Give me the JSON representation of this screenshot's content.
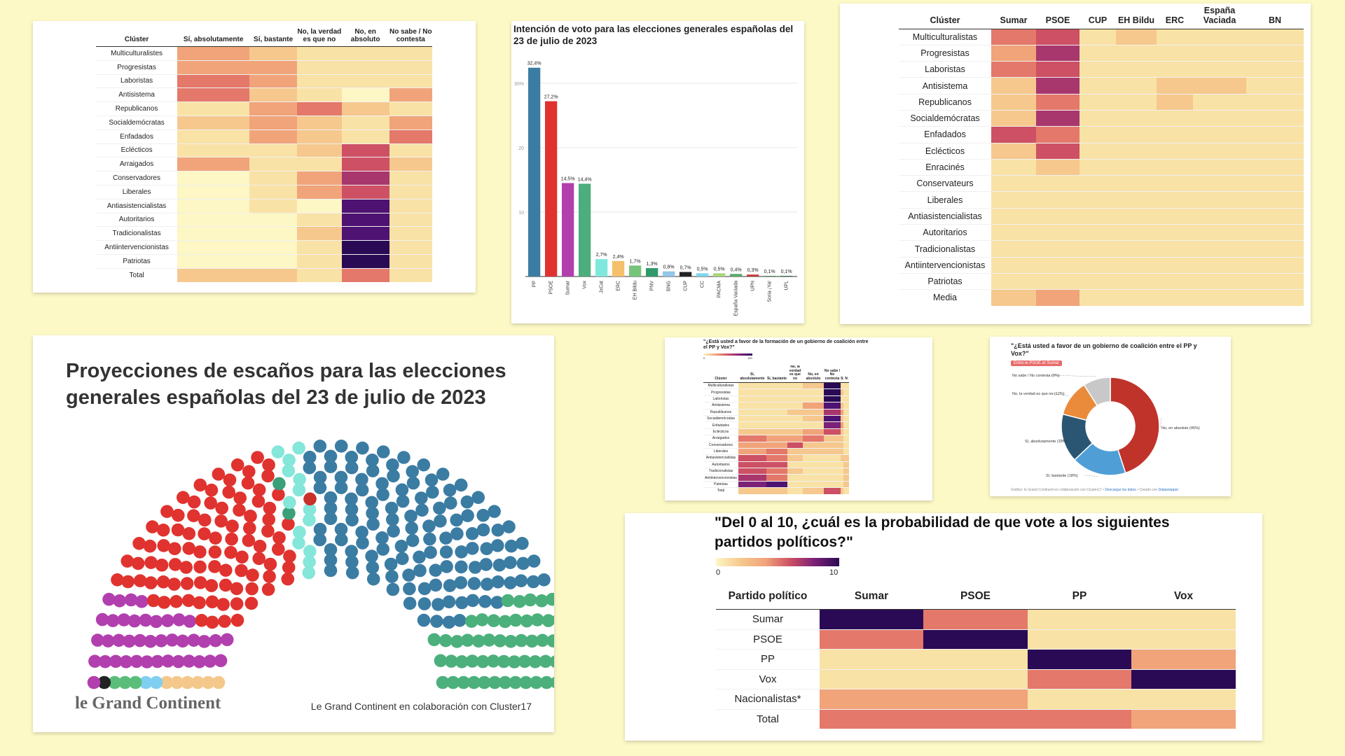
{
  "colors": {
    "background": "#fdf9c6",
    "scale": [
      "#fdf6c5",
      "#f9e2a5",
      "#f6c88e",
      "#f1a47a",
      "#e4786a",
      "#cd5064",
      "#a8376e",
      "#7b2177",
      "#4e1372",
      "#2a0a55"
    ]
  },
  "card1": {
    "headers": [
      "Clúster",
      "Sí, absolutamente",
      "Sí, bastante",
      "No, la verdad es que no",
      "No, en absoluto",
      "No sabe / No contesta"
    ],
    "rows": [
      {
        "label": "Multiculturalistes",
        "v": [
          3,
          2,
          1,
          1,
          1
        ]
      },
      {
        "label": "Progresistas",
        "v": [
          3,
          3,
          1,
          1,
          1
        ]
      },
      {
        "label": "Laboristas",
        "v": [
          4,
          3,
          1,
          1,
          1
        ]
      },
      {
        "label": "Antisistema",
        "v": [
          4,
          2,
          1,
          0,
          3
        ]
      },
      {
        "label": "Republicanos",
        "v": [
          1,
          3,
          4,
          2,
          1
        ]
      },
      {
        "label": "Socialdemócratas",
        "v": [
          2,
          3,
          2,
          1,
          3
        ]
      },
      {
        "label": "Enfadados",
        "v": [
          1,
          3,
          2,
          1,
          4
        ]
      },
      {
        "label": "Eclécticos",
        "v": [
          1,
          1,
          2,
          5,
          1
        ]
      },
      {
        "label": "Arraigados",
        "v": [
          3,
          1,
          1,
          5,
          2
        ]
      },
      {
        "label": "Conservadores",
        "v": [
          0,
          1,
          3,
          6,
          1
        ]
      },
      {
        "label": "Liberales",
        "v": [
          0,
          1,
          3,
          5,
          1
        ]
      },
      {
        "label": "Antiasistencialistas",
        "v": [
          0,
          1,
          0,
          8,
          1
        ]
      },
      {
        "label": "Autoritarios",
        "v": [
          0,
          0,
          1,
          8,
          1
        ]
      },
      {
        "label": "Tradicionalistas",
        "v": [
          0,
          0,
          2,
          8,
          1
        ]
      },
      {
        "label": "Antiintervencionistas",
        "v": [
          0,
          0,
          1,
          9,
          1
        ]
      },
      {
        "label": "Patriotas",
        "v": [
          0,
          0,
          1,
          9,
          1
        ]
      }
    ],
    "total": {
      "label": "Total",
      "v": [
        2,
        2,
        1,
        4,
        1
      ]
    }
  },
  "card2": {
    "title": "Intención de voto para las elecciones generales españolas del 23 de julio de 2023"
  },
  "chart_data": [
    {
      "type": "bar",
      "title": "Intención de voto para las elecciones generales españolas del 23 de julio de 2023",
      "categories": [
        "PP",
        "PSOE",
        "Sumar",
        "Vox",
        "JxCat",
        "ERC",
        "EH Bildu",
        "PNV",
        "BNG",
        "CUP",
        "CC",
        "PACMA",
        "España Vaciada",
        "UPN",
        "Soria ¡Ya!",
        "UPL"
      ],
      "values": [
        32.4,
        27.2,
        14.5,
        14.4,
        2.7,
        2.4,
        1.7,
        1.3,
        0.8,
        0.7,
        0.5,
        0.5,
        0.4,
        0.3,
        0.1,
        0.1
      ],
      "labels": [
        "32,4%",
        "27,2%",
        "14,5%",
        "14,4%",
        "2,7%",
        "2,4%",
        "1,7%",
        "1,3%",
        "0,8%",
        "0,7%",
        "0,5%",
        "0,5%",
        "0,4%",
        "0,3%",
        "0,1%",
        "0,1%"
      ],
      "colors": [
        "#3b7ca3",
        "#e0332f",
        "#b23fae",
        "#4cae7c",
        "#7fe8dc",
        "#f4c06a",
        "#76c47a",
        "#2e9a6a",
        "#93c6e8",
        "#222222",
        "#7fd6f0",
        "#a8d67a",
        "#5aa96a",
        "#c43a3a",
        "#4a8a5a",
        "#2f6e4a"
      ],
      "yticks": [
        "10",
        "20",
        "30%"
      ],
      "ylim": [
        0,
        34
      ]
    },
    {
      "type": "heatmap",
      "title": "",
      "columns": [
        "Sumar",
        "PSOE",
        "CUP",
        "EH Bildu",
        "ERC",
        "España Vaciada",
        "BN"
      ],
      "rows": [
        "Multiculturalistas",
        "Progresistas",
        "Laboristas",
        "Antisistema",
        "Republicanos",
        "Socialdemócratas",
        "Enfadados",
        "Eclécticos",
        "Enracinés",
        "Conservateurs",
        "Liberales",
        "Antiasistencialistas",
        "Autoritarios",
        "Tradicionalistas",
        "Antiintervencionistas",
        "Patriotas",
        "Media"
      ]
    },
    {
      "type": "pie",
      "title": "¿Está usted a favor de un gobierno de coalición entre el PP y Vox?",
      "slices": [
        {
          "label": "No, en absoluto (45%)",
          "value": 45,
          "color": "#c0332b"
        },
        {
          "label": "Sí, bastante (18%)",
          "value": 18,
          "color": "#4f9ed6"
        },
        {
          "label": "Sí, absolutamente (16%)",
          "value": 16,
          "color": "#2b5673"
        },
        {
          "label": "No, la verdad es que no (12%)",
          "value": 12,
          "color": "#e98b3a"
        },
        {
          "label": "No sabe / No contesta (9%)",
          "value": 9,
          "color": "#c8c8c8"
        }
      ]
    },
    {
      "type": "heatmap",
      "title": "\"Del 0 al 10, ¿cuál es la probabilidad de que vote a los siguientes partidos políticos?\"",
      "columns": [
        "Sumar",
        "PSOE",
        "PP",
        "Vox"
      ],
      "rows": [
        "Sumar",
        "PSOE",
        "PP",
        "Vox",
        "Nacionalistas*",
        "Total"
      ]
    }
  ],
  "card3": {
    "headers": [
      "Clúster",
      "Sumar",
      "PSOE",
      "CUP",
      "EH Bildu",
      "ERC",
      "España Vaciada",
      "BN"
    ],
    "rows": [
      {
        "label": "Multiculturalistas",
        "v": [
          4,
          5,
          1,
          2,
          1,
          1,
          1
        ]
      },
      {
        "label": "Progresistas",
        "v": [
          3,
          6,
          1,
          1,
          1,
          1,
          1
        ]
      },
      {
        "label": "Laboristas",
        "v": [
          4,
          5,
          1,
          1,
          1,
          1,
          1
        ]
      },
      {
        "label": "Antisistema",
        "v": [
          2,
          6,
          1,
          1,
          2,
          2,
          1
        ]
      },
      {
        "label": "Republicanos",
        "v": [
          2,
          4,
          1,
          1,
          2,
          1,
          1
        ]
      },
      {
        "label": "Socialdemócratas",
        "v": [
          2,
          6,
          1,
          1,
          1,
          1,
          1
        ]
      },
      {
        "label": "Enfadados",
        "v": [
          5,
          4,
          1,
          1,
          1,
          1,
          1
        ]
      },
      {
        "label": "Eclécticos",
        "v": [
          2,
          5,
          1,
          1,
          1,
          1,
          1
        ]
      },
      {
        "label": "Enracinés",
        "v": [
          1,
          2,
          1,
          1,
          1,
          1,
          1
        ]
      },
      {
        "label": "Conservateurs",
        "v": [
          1,
          1,
          1,
          1,
          1,
          1,
          1
        ]
      },
      {
        "label": "Liberales",
        "v": [
          1,
          1,
          1,
          1,
          1,
          1,
          1
        ]
      },
      {
        "label": "Antiasistencialistas",
        "v": [
          1,
          1,
          1,
          1,
          1,
          1,
          1
        ]
      },
      {
        "label": "Autoritarios",
        "v": [
          1,
          1,
          1,
          1,
          1,
          1,
          1
        ]
      },
      {
        "label": "Tradicionalistas",
        "v": [
          1,
          1,
          1,
          1,
          1,
          1,
          1
        ]
      },
      {
        "label": "Antiintervencionistas",
        "v": [
          1,
          1,
          1,
          1,
          1,
          1,
          1
        ]
      },
      {
        "label": "Patriotas",
        "v": [
          1,
          1,
          1,
          1,
          1,
          1,
          1
        ]
      }
    ],
    "total": {
      "label": "Media",
      "v": [
        2,
        3,
        1,
        1,
        1,
        1,
        1
      ]
    }
  },
  "card4": {
    "title": "Proyecciones de escaños para las elecciones generales españolas del 23 de julio de 2023",
    "logo": "le Grand Continent",
    "credit": "Le Grand Continent en colaboración con Cluster17"
  },
  "card5": {
    "title": "\"¿Está usted a favor de la formación de un gobierno de coalición entre el PP y Vox?\"",
    "scale_min": "0",
    "scale_max": "100",
    "headers": [
      "Clúster",
      "Sí, absolutamente",
      "Sí, bastante",
      "No, la verdad es que no",
      "No, en absoluto",
      "No sabe / No contesta",
      "Sí",
      "N"
    ],
    "rows": [
      {
        "label": "Multiculturalistas",
        "v": [
          1,
          1,
          1,
          2,
          9,
          1,
          1,
          9
        ]
      },
      {
        "label": "Progresistas",
        "v": [
          1,
          1,
          1,
          1,
          9,
          2,
          1,
          9
        ]
      },
      {
        "label": "Laboristas",
        "v": [
          1,
          1,
          1,
          1,
          9,
          1,
          1,
          9
        ]
      },
      {
        "label": "Antisistema",
        "v": [
          1,
          1,
          1,
          3,
          8,
          2,
          1,
          9
        ]
      },
      {
        "label": "Republicanos",
        "v": [
          1,
          1,
          2,
          2,
          6,
          3,
          1,
          9
        ]
      },
      {
        "label": "Socialdemócratas",
        "v": [
          1,
          1,
          1,
          2,
          8,
          2,
          1,
          9
        ]
      },
      {
        "label": "Enfadados",
        "v": [
          1,
          1,
          1,
          1,
          7,
          3,
          1,
          8
        ]
      },
      {
        "label": "Eclécticos",
        "v": [
          2,
          2,
          2,
          3,
          5,
          2,
          1,
          8
        ]
      },
      {
        "label": "Arraigados",
        "v": [
          4,
          3,
          3,
          4,
          2,
          2,
          1,
          7
        ]
      },
      {
        "label": "Conservadores",
        "v": [
          3,
          3,
          5,
          2,
          2,
          2,
          1,
          7
        ]
      },
      {
        "label": "Liberales",
        "v": [
          3,
          4,
          2,
          2,
          2,
          2,
          1,
          8
        ]
      },
      {
        "label": "Antiasistencialistas",
        "v": [
          5,
          4,
          2,
          1,
          1,
          2,
          2,
          6
        ]
      },
      {
        "label": "Autoritarios",
        "v": [
          5,
          5,
          1,
          1,
          1,
          1,
          2,
          6
        ]
      },
      {
        "label": "Tradicionalistas",
        "v": [
          5,
          4,
          2,
          1,
          1,
          1,
          2,
          6
        ]
      },
      {
        "label": "Antiintervencionistas",
        "v": [
          6,
          4,
          1,
          1,
          1,
          1,
          2,
          7
        ]
      },
      {
        "label": "Patriotas",
        "v": [
          7,
          8,
          1,
          1,
          1,
          1,
          2,
          6
        ]
      }
    ],
    "total": {
      "label": "Total",
      "v": [
        2,
        2,
        1,
        2,
        5,
        2,
        1,
        8
      ]
    }
  },
  "card6": {
    "title": "\"¿Está usted a favor de un gobierno de coalición entre el PP y Vox?\"",
    "tag": "Entre le PSOE et Sumar",
    "footer_a": "Gráfico: le Grand Continent en colaboración con Cluster17 •",
    "footer_link": "Descargar los datos",
    "footer_b": "• Creado con",
    "footer_tool": "Datawrapper"
  },
  "card7": {
    "title": "\"Del 0 al 10, ¿cuál es la probabilidad de que vote a los siguientes partidos políticos?\"",
    "scale_min": "0",
    "scale_max": "10",
    "headers": [
      "Partido político",
      "Sumar",
      "PSOE",
      "PP",
      "Vox"
    ],
    "rows": [
      {
        "label": "Sumar",
        "v": [
          9,
          4,
          1,
          1
        ]
      },
      {
        "label": "PSOE",
        "v": [
          4,
          9,
          1,
          1
        ]
      },
      {
        "label": "PP",
        "v": [
          1,
          1,
          9,
          3
        ]
      },
      {
        "label": "Vox",
        "v": [
          1,
          1,
          4,
          9
        ]
      },
      {
        "label": "Nacionalistas*",
        "v": [
          3,
          3,
          1,
          1
        ]
      }
    ],
    "total": {
      "label": "Total",
      "v": [
        4,
        4,
        4,
        3
      ]
    }
  }
}
